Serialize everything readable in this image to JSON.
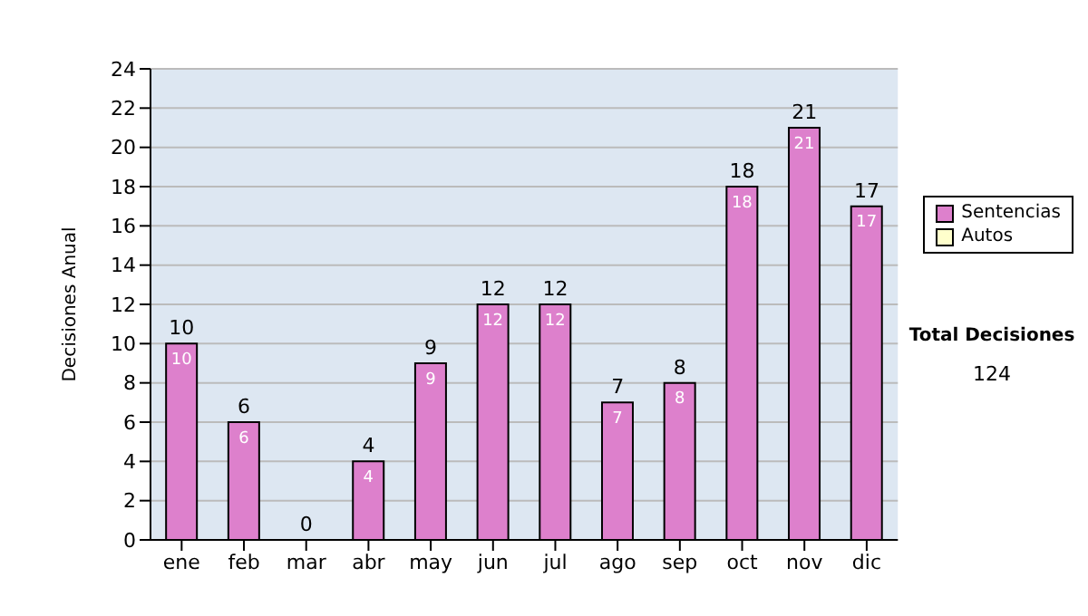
{
  "chart_data": {
    "type": "bar",
    "stacked": true,
    "ylabel": "Decisiones Anual",
    "categories": [
      "ene",
      "feb",
      "mar",
      "abr",
      "may",
      "jun",
      "jul",
      "ago",
      "sep",
      "oct",
      "nov",
      "dic"
    ],
    "series": [
      {
        "name": "Sentencias",
        "color": "#dd80cc",
        "values": [
          10,
          6,
          0,
          4,
          9,
          12,
          12,
          7,
          8,
          18,
          21,
          17
        ],
        "value_labels": [
          "10",
          "6",
          null,
          "4",
          "9",
          "12",
          "12",
          "7",
          "8",
          "18",
          "21",
          "17"
        ]
      },
      {
        "name": "Autos",
        "color": "#ffffcc",
        "values": [
          0,
          0,
          0,
          0,
          0,
          0,
          0,
          0,
          0,
          0,
          0,
          0
        ]
      }
    ],
    "totals": [
      "10",
      "6",
      "0",
      "4",
      "9",
      "12",
      "12",
      "7",
      "8",
      "18",
      "21",
      "17"
    ],
    "ylim": [
      0,
      24
    ],
    "yticks": [
      0,
      2,
      4,
      6,
      8,
      10,
      12,
      14,
      16,
      18,
      20,
      22,
      24
    ],
    "grid": "y",
    "legend": "right",
    "annotations": [
      "Total Decisiones",
      "124"
    ]
  }
}
